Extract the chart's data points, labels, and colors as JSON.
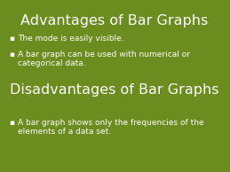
{
  "bg_color": "#6b8c1e",
  "text_color": "#ffffff",
  "title1": "Advantages of Bar Graphs",
  "bullet1_1": "The mode is easily visible.",
  "bullet1_2": "A bar graph can be used with numerical or\ncategorical data.",
  "title2": "Disadvantages of Bar Graphs",
  "bullet2_1": "A bar graph shows only the frequencies of the\nelements of a data set.",
  "title_fontsize": 11.5,
  "bullet_fontsize": 6.5,
  "bullet_marker": "▪"
}
